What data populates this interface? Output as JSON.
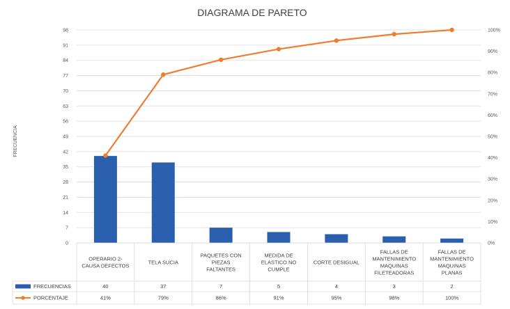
{
  "chart_data": {
    "type": "bar",
    "title": "DIAGRAMA DE PARETO",
    "ylabel": "FRECUENCIA",
    "categories": [
      [
        "OPERARIO 2-",
        "CAUSA DEFECTOS"
      ],
      [
        "TELA SUCIA"
      ],
      [
        "PAQUETES CON",
        "PIEZAS",
        "FALTANTES"
      ],
      [
        "MEDIDA DE",
        "ELASTICO NO",
        "CUMPLE"
      ],
      [
        "CORTE DESIGUAL"
      ],
      [
        "FALLAS DE",
        "MANTENIMIENTO",
        "MAQUINAS",
        "FILETEADORAS"
      ],
      [
        "FALLAS DE",
        "MANTENIMIENTO",
        "MAQUINAS",
        "PLANAS"
      ]
    ],
    "series": [
      {
        "name": "FRECUENCIAS",
        "type": "bar",
        "axis": "left",
        "color": "#2a5fad",
        "values": [
          40,
          37,
          7,
          5,
          4,
          3,
          2
        ],
        "labels": [
          "40",
          "37",
          "7",
          "5",
          "4",
          "3",
          "2"
        ]
      },
      {
        "name": "PORCENTAJE",
        "type": "line",
        "axis": "right",
        "color": "#ed7d31",
        "values": [
          41,
          79,
          86,
          91,
          95,
          98,
          100
        ],
        "labels": [
          "41%",
          "79%",
          "86%",
          "91%",
          "95%",
          "98%",
          "100%"
        ]
      }
    ],
    "y_left": {
      "min": 0,
      "max": 98,
      "ticks": [
        "0",
        "7",
        "14",
        "21",
        "28",
        "35",
        "42",
        "49",
        "56",
        "63",
        "70",
        "77",
        "84",
        "91",
        "98"
      ]
    },
    "y_right": {
      "min": 0,
      "max": 100,
      "ticks": [
        "0%",
        "10%",
        "20%",
        "30%",
        "40%",
        "50%",
        "60%",
        "70%",
        "80%",
        "90%",
        "100%"
      ]
    },
    "grid": true,
    "legend": "data-table"
  }
}
